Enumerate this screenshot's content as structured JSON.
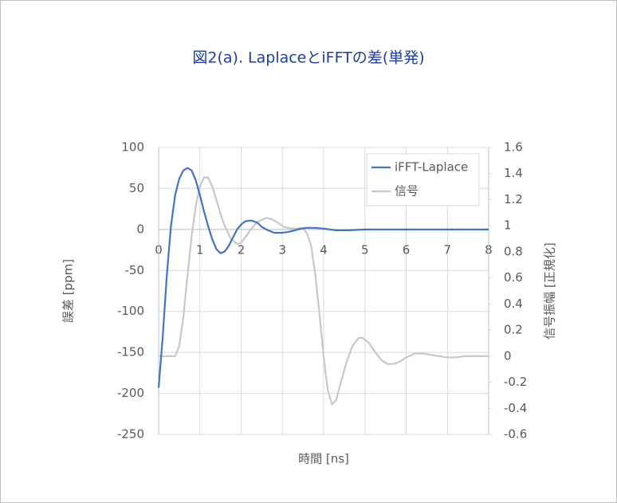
{
  "chart_data": {
    "type": "line",
    "title": "図2(a). LaplaceとiFFTの差(単発)",
    "x_label": "時間 [ns]",
    "y_label": "誤差 [ppm]",
    "y2_label": "信号振幅 [正規化]",
    "xlim": [
      0,
      8
    ],
    "xticks": [
      0,
      1,
      2,
      3,
      4,
      5,
      6,
      7,
      8
    ],
    "ylim": [
      -250,
      100
    ],
    "yticks": [
      100,
      50,
      0,
      -50,
      -100,
      -150,
      -200,
      -250
    ],
    "y2lim": [
      -0.6,
      1.6
    ],
    "y2ticks": [
      1.6,
      1.4,
      1.2,
      1,
      0.8,
      0.6,
      0.4,
      0.2,
      0,
      -0.2,
      -0.4,
      -0.6
    ],
    "grid": true,
    "legend": "upper right",
    "series": [
      {
        "name": "iFFT-Laplace",
        "color": "#4472c4",
        "x": [
          0,
          0.1,
          0.2,
          0.3,
          0.4,
          0.5,
          0.6,
          0.7,
          0.8,
          0.9,
          1.0,
          1.1,
          1.2,
          1.3,
          1.4,
          1.5,
          1.6,
          1.7,
          1.8,
          1.9,
          2.0,
          2.1,
          2.25,
          2.4,
          2.5,
          2.65,
          2.8,
          3.0,
          3.15,
          3.3,
          3.45,
          3.6,
          3.8,
          4.0,
          4.3,
          4.6,
          5.0,
          5.5,
          6.0,
          7.0,
          8.0
        ],
        "values": [
          -193,
          -130,
          -55,
          5,
          42,
          62,
          72,
          75,
          72,
          60,
          42,
          22,
          4,
          -12,
          -24,
          -29,
          -27,
          -20,
          -10,
          0,
          6,
          10,
          11,
          8,
          3,
          -1,
          -4,
          -4,
          -3,
          -1,
          1,
          2,
          2,
          1,
          -1,
          -1,
          0,
          0,
          0,
          0,
          0
        ],
        "axis": "y"
      },
      {
        "name": "信号",
        "color": "#c8c8c8",
        "x": [
          0,
          0.2,
          0.4,
          0.5,
          0.6,
          0.7,
          0.8,
          0.9,
          1.0,
          1.1,
          1.2,
          1.3,
          1.4,
          1.5,
          1.6,
          1.75,
          1.9,
          2.0,
          2.1,
          2.25,
          2.4,
          2.6,
          2.75,
          2.9,
          3.05,
          3.2,
          3.35,
          3.5,
          3.6,
          3.7,
          3.8,
          3.9,
          4.0,
          4.1,
          4.2,
          4.3,
          4.4,
          4.55,
          4.7,
          4.85,
          4.95,
          5.1,
          5.25,
          5.4,
          5.55,
          5.7,
          5.85,
          6.0,
          6.2,
          6.4,
          6.6,
          6.8,
          7.0,
          7.2,
          7.4,
          7.6,
          8.0
        ],
        "values": [
          0,
          0,
          0,
          0.08,
          0.3,
          0.62,
          0.92,
          1.15,
          1.3,
          1.37,
          1.37,
          1.3,
          1.2,
          1.09,
          1.0,
          0.9,
          0.86,
          0.87,
          0.91,
          0.98,
          1.03,
          1.06,
          1.05,
          1.02,
          0.99,
          0.98,
          0.98,
          0.98,
          0.94,
          0.84,
          0.62,
          0.32,
          0.0,
          -0.26,
          -0.37,
          -0.34,
          -0.22,
          -0.05,
          0.08,
          0.14,
          0.14,
          0.1,
          0.03,
          -0.03,
          -0.06,
          -0.06,
          -0.04,
          -0.01,
          0.02,
          0.02,
          0.01,
          0.0,
          -0.01,
          -0.01,
          0.0,
          0.0,
          0.0
        ],
        "axis": "y2"
      }
    ]
  }
}
